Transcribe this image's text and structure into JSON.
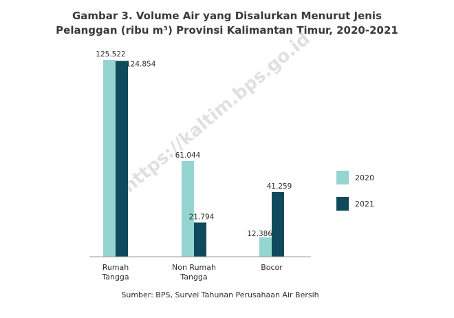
{
  "chart_data": {
    "type": "bar",
    "title": "Gambar 3. Volume Air yang Disalurkan Menurut Jenis Pelanggan (ribu m³) Provinsi Kalimantan Timur, 2020-2021",
    "title_lines": [
      "Gambar 3. Volume Air yang Disalurkan Menurut Jenis",
      "Pelanggan (ribu m³) Provinsi Kalimantan Timur, 2020-2021"
    ],
    "categories": [
      "Rumah Tangga",
      "Non Rumah Tangga",
      "Bocor"
    ],
    "category_lines": [
      [
        "Rumah",
        "Tangga"
      ],
      [
        "Non Rumah",
        "Tangga"
      ],
      [
        "Bocor"
      ]
    ],
    "series": [
      {
        "name": "2020",
        "color": "#95d5d1",
        "values": [
          125.522,
          61.044,
          12.386
        ],
        "labels": [
          "125.522",
          "61.044",
          "12.386"
        ]
      },
      {
        "name": "2021",
        "color": "#0f4a5c",
        "values": [
          124.854,
          21.794,
          41.259
        ],
        "labels": [
          "124.854",
          "21.794",
          "41.259"
        ]
      }
    ],
    "ylim": [
      0,
      125.522
    ],
    "grid": false,
    "legend_position": "right",
    "source": "Sumber: BPS, Survei Tahunan Perusahaan Air Bersih",
    "watermark": "https://kaltim.bps.go.id"
  }
}
